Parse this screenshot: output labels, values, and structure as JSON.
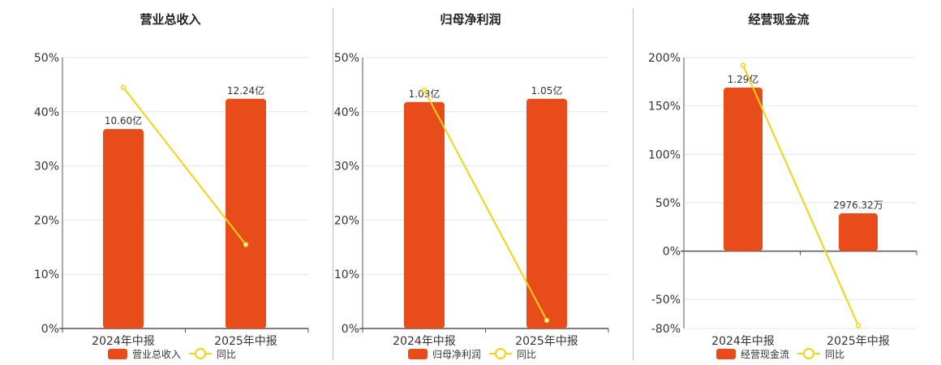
{
  "colors": {
    "bar": "#E84C1A",
    "line": "#F2D314",
    "grid": "#e2e4ec",
    "axis": "#555555"
  },
  "legend": {
    "line_label": "同比"
  },
  "chart_data": [
    {
      "type": "bar",
      "title": "营业总收入",
      "categories": [
        "2024年中报",
        "2025年中报"
      ],
      "yticks": [
        "50%",
        "40%",
        "30%",
        "20%",
        "10%",
        "0%"
      ],
      "ylim": [
        0,
        50
      ],
      "series": [
        {
          "name": "营业总收入",
          "kind": "bar",
          "values": [
            36.8,
            42.4
          ],
          "labels": [
            "10.60亿",
            "12.24亿"
          ]
        },
        {
          "name": "同比",
          "kind": "line",
          "values": [
            44.5,
            15.5
          ]
        }
      ]
    },
    {
      "type": "bar",
      "title": "归母净利润",
      "categories": [
        "2024年中报",
        "2025年中报"
      ],
      "yticks": [
        "50%",
        "40%",
        "30%",
        "20%",
        "10%",
        "0%"
      ],
      "ylim": [
        0,
        50
      ],
      "series": [
        {
          "name": "归母净利润",
          "kind": "bar",
          "values": [
            41.8,
            42.4
          ],
          "labels": [
            "1.03亿",
            "1.05亿"
          ]
        },
        {
          "name": "同比",
          "kind": "line",
          "values": [
            44.0,
            1.5
          ]
        }
      ]
    },
    {
      "type": "bar",
      "title": "经营现金流",
      "categories": [
        "2024年中报",
        "2025年中报"
      ],
      "yticks": [
        "200%",
        "150%",
        "100%",
        "50%",
        "0%",
        "-50%",
        "-80%"
      ],
      "ylim": [
        -80,
        200
      ],
      "series": [
        {
          "name": "经营现金流",
          "kind": "bar",
          "values": [
            169,
            39
          ],
          "labels": [
            "1.29亿",
            "2976.32万"
          ]
        },
        {
          "name": "同比",
          "kind": "line",
          "values": [
            192,
            -77
          ]
        }
      ]
    }
  ]
}
